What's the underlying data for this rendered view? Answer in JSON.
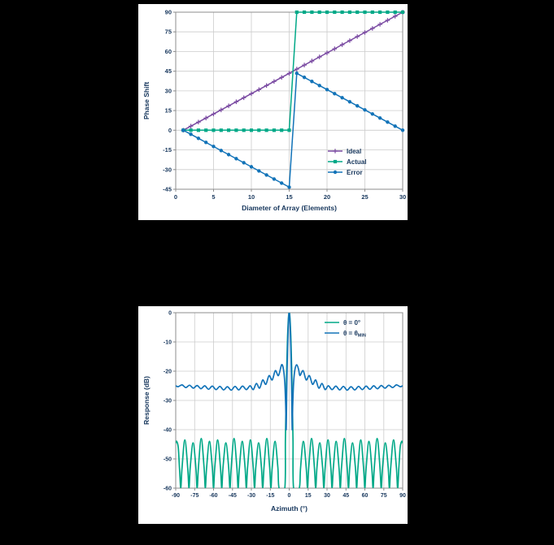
{
  "page": {
    "background": "#000000"
  },
  "colors": {
    "navy": "#16365c",
    "purple": "#7a4aa2",
    "green": "#00a887",
    "blue": "#1273b8",
    "grid": "#cccccc",
    "frame": "#8c8c8c",
    "panel": "#ffffff"
  },
  "chart_data": [
    {
      "type": "line",
      "title": "",
      "xlabel": "Diameter of Array (Elements)",
      "ylabel": "Phase Shift",
      "xlim": [
        0,
        30
      ],
      "ylim": [
        -45,
        90
      ],
      "xticks": [
        0,
        5,
        10,
        15,
        20,
        25,
        30
      ],
      "yticks": [
        -45,
        -30,
        -15,
        0,
        15,
        30,
        45,
        60,
        75,
        90
      ],
      "grid": true,
      "legend_position": "bottom-right",
      "series": [
        {
          "id": "ideal",
          "name": "Ideal",
          "color": "#7a4aa2",
          "marker": "plus",
          "smooth": false,
          "x": [
            1,
            2,
            3,
            4,
            5,
            6,
            7,
            8,
            9,
            10,
            11,
            12,
            13,
            14,
            15,
            16,
            17,
            18,
            19,
            20,
            21,
            22,
            23,
            24,
            25,
            26,
            27,
            28,
            29,
            30
          ],
          "values": [
            0,
            3.1,
            6.2,
            9.3,
            12.4,
            15.5,
            18.6,
            21.7,
            24.8,
            27.9,
            31,
            34.1,
            37.2,
            40.3,
            43.4,
            46.6,
            49.7,
            52.8,
            55.9,
            59,
            62.1,
            65.2,
            68.3,
            71.4,
            74.5,
            77.6,
            80.7,
            83.8,
            86.9,
            90
          ]
        },
        {
          "id": "actual",
          "name": "Actual",
          "color": "#00a887",
          "marker": "square",
          "smooth": false,
          "x": [
            1,
            2,
            3,
            4,
            5,
            6,
            7,
            8,
            9,
            10,
            11,
            12,
            13,
            14,
            15,
            16,
            17,
            18,
            19,
            20,
            21,
            22,
            23,
            24,
            25,
            26,
            27,
            28,
            29,
            30
          ],
          "values": [
            0,
            0,
            0,
            0,
            0,
            0,
            0,
            0,
            0,
            0,
            0,
            0,
            0,
            0,
            0,
            90,
            90,
            90,
            90,
            90,
            90,
            90,
            90,
            90,
            90,
            90,
            90,
            90,
            90,
            90
          ]
        },
        {
          "id": "error",
          "name": "Error",
          "color": "#1273b8",
          "marker": "circle",
          "smooth": false,
          "x": [
            1,
            2,
            3,
            4,
            5,
            6,
            7,
            8,
            9,
            10,
            11,
            12,
            13,
            14,
            15,
            16,
            17,
            18,
            19,
            20,
            21,
            22,
            23,
            24,
            25,
            26,
            27,
            28,
            29,
            30
          ],
          "values": [
            0,
            -3.1,
            -6.2,
            -9.3,
            -12.4,
            -15.5,
            -18.6,
            -21.7,
            -24.8,
            -27.9,
            -31,
            -34.1,
            -37.2,
            -40.3,
            -43.4,
            43.4,
            40.3,
            37.2,
            34.1,
            31,
            27.9,
            24.8,
            21.7,
            18.6,
            15.5,
            12.4,
            9.3,
            6.2,
            3.1,
            0
          ]
        }
      ]
    },
    {
      "type": "line",
      "title": "",
      "xlabel": "Azimuth (°)",
      "ylabel": "Response (dB)",
      "xlim": [
        -90,
        90
      ],
      "ylim": [
        -60,
        0
      ],
      "xticks": [
        -90,
        -75,
        -60,
        -45,
        -30,
        -15,
        0,
        15,
        30,
        45,
        60,
        75,
        90
      ],
      "yticks": [
        -60,
        -50,
        -40,
        -30,
        -20,
        -10,
        0
      ],
      "grid": true,
      "clip": true,
      "legend_position": "top-right",
      "series": [
        {
          "id": "theta-zero",
          "name": "θ = 0°",
          "label_main": "θ = 0°",
          "label_sub": "",
          "color": "#00a887",
          "smooth": true,
          "width": 1.7,
          "points": [
            [
              -90,
              -44.5
            ],
            [
              -89.25,
              -44
            ],
            [
              -88,
              -46
            ],
            [
              -87,
              -53
            ],
            [
              -86,
              -60
            ],
            [
              -85,
              -53
            ],
            [
              -82.75,
              -43.5
            ],
            [
              -80.5,
              -53
            ],
            [
              -79.5,
              -60
            ],
            [
              -78.5,
              -53
            ],
            [
              -76.25,
              -44.5
            ],
            [
              -74,
              -53
            ],
            [
              -73,
              -60
            ],
            [
              -72,
              -53
            ],
            [
              -69.75,
              -43
            ],
            [
              -67.5,
              -53
            ],
            [
              -66.5,
              -60
            ],
            [
              -65.5,
              -53
            ],
            [
              -63.25,
              -44
            ],
            [
              -61,
              -53
            ],
            [
              -60,
              -60
            ],
            [
              -59,
              -53
            ],
            [
              -56.75,
              -43.5
            ],
            [
              -54.5,
              -53
            ],
            [
              -53.5,
              -60
            ],
            [
              -52.5,
              -53
            ],
            [
              -50.25,
              -44.5
            ],
            [
              -48,
              -53
            ],
            [
              -47,
              -60
            ],
            [
              -46,
              -53
            ],
            [
              -43.75,
              -43
            ],
            [
              -41.5,
              -53
            ],
            [
              -40.5,
              -60
            ],
            [
              -39.5,
              -53
            ],
            [
              -37.25,
              -44
            ],
            [
              -35,
              -53
            ],
            [
              -34,
              -60
            ],
            [
              -33,
              -53
            ],
            [
              -30.75,
              -43.5
            ],
            [
              -28.5,
              -53
            ],
            [
              -27.5,
              -60
            ],
            [
              -26.5,
              -53
            ],
            [
              -24.25,
              -44.5
            ],
            [
              -22,
              -53
            ],
            [
              -21,
              -60
            ],
            [
              -20,
              -53
            ],
            [
              -17.75,
              -43
            ],
            [
              -15.5,
              -53
            ],
            [
              -14.5,
              -60
            ],
            [
              -13.5,
              -53
            ],
            [
              -11.25,
              -44
            ],
            [
              -9,
              -53
            ],
            [
              -8,
              -60
            ],
            [
              -3.5,
              -60
            ],
            [
              -3,
              -44
            ],
            [
              -2.5,
              -30.6
            ],
            [
              -2,
              -19.6
            ],
            [
              -1.5,
              -11
            ],
            [
              -1,
              -4.9
            ],
            [
              -0.5,
              -1.2
            ],
            [
              0,
              0
            ],
            [
              0.5,
              -1.2
            ],
            [
              1,
              -4.9
            ],
            [
              1.5,
              -11
            ],
            [
              2,
              -19.6
            ],
            [
              2.5,
              -30.6
            ],
            [
              3,
              -44
            ],
            [
              3.5,
              -60
            ],
            [
              8,
              -60
            ],
            [
              9,
              -53
            ],
            [
              11.25,
              -44
            ],
            [
              13.5,
              -53
            ],
            [
              14.5,
              -60
            ],
            [
              15.5,
              -53
            ],
            [
              17.75,
              -43
            ],
            [
              20,
              -53
            ],
            [
              21,
              -60
            ],
            [
              22,
              -53
            ],
            [
              24.25,
              -44.5
            ],
            [
              26.5,
              -53
            ],
            [
              27.5,
              -60
            ],
            [
              28.5,
              -53
            ],
            [
              30.75,
              -43.5
            ],
            [
              33,
              -53
            ],
            [
              34,
              -60
            ],
            [
              35,
              -53
            ],
            [
              37.25,
              -44
            ],
            [
              39.5,
              -53
            ],
            [
              40.5,
              -60
            ],
            [
              41.5,
              -53
            ],
            [
              43.75,
              -43
            ],
            [
              46,
              -53
            ],
            [
              47,
              -60
            ],
            [
              48,
              -53
            ],
            [
              50.25,
              -44.5
            ],
            [
              52.5,
              -53
            ],
            [
              53.5,
              -60
            ],
            [
              54.5,
              -53
            ],
            [
              56.75,
              -43.5
            ],
            [
              59,
              -53
            ],
            [
              60,
              -60
            ],
            [
              61,
              -53
            ],
            [
              63.25,
              -44
            ],
            [
              65.5,
              -53
            ],
            [
              66.5,
              -60
            ],
            [
              67.5,
              -53
            ],
            [
              69.75,
              -43
            ],
            [
              72,
              -53
            ],
            [
              73,
              -60
            ],
            [
              74,
              -53
            ],
            [
              76.25,
              -44.5
            ],
            [
              78.5,
              -53
            ],
            [
              79.5,
              -60
            ],
            [
              80.5,
              -53
            ],
            [
              82.75,
              -43.5
            ],
            [
              85,
              -53
            ],
            [
              86,
              -60
            ],
            [
              87,
              -53
            ],
            [
              88,
              -46
            ],
            [
              89.25,
              -44
            ],
            [
              90,
              -44.5
            ]
          ]
        },
        {
          "id": "theta-min",
          "name": "θ = θMIN",
          "label_main": "θ = θ",
          "label_sub": "MIN",
          "color": "#1273b8",
          "smooth": true,
          "width": 1.7,
          "points": [
            [
              -90,
              -25
            ],
            [
              -88,
              -25.3
            ],
            [
              -85,
              -24.7
            ],
            [
              -82,
              -25.6
            ],
            [
              -79,
              -24.8
            ],
            [
              -76,
              -25.8
            ],
            [
              -73,
              -24.9
            ],
            [
              -70,
              -26
            ],
            [
              -67,
              -25
            ],
            [
              -64,
              -26.2
            ],
            [
              -61,
              -25.1
            ],
            [
              -58,
              -26.3
            ],
            [
              -55,
              -25.2
            ],
            [
              -52,
              -26.4
            ],
            [
              -49,
              -25.3
            ],
            [
              -46,
              -26.5
            ],
            [
              -43,
              -25.2
            ],
            [
              -40,
              -26.4
            ],
            [
              -37,
              -25.1
            ],
            [
              -34,
              -26.3
            ],
            [
              -31,
              -25
            ],
            [
              -28.5,
              -26.3
            ],
            [
              -26,
              -24.2
            ],
            [
              -23.5,
              -25.8
            ],
            [
              -21,
              -23
            ],
            [
              -18.5,
              -24.5
            ],
            [
              -16,
              -21.5
            ],
            [
              -13.5,
              -23
            ],
            [
              -11,
              -19.8
            ],
            [
              -8.5,
              -21.5
            ],
            [
              -6,
              -17.8
            ],
            [
              -4.5,
              -19.5
            ],
            [
              -3.5,
              -24
            ],
            [
              -2.8,
              -32
            ],
            [
              -2.4,
              -40
            ],
            [
              -2,
              -28
            ],
            [
              -1.5,
              -16
            ],
            [
              -1,
              -7.5
            ],
            [
              -0.5,
              -2
            ],
            [
              0,
              0
            ],
            [
              0.5,
              -2
            ],
            [
              1,
              -7.5
            ],
            [
              1.5,
              -16
            ],
            [
              2,
              -28
            ],
            [
              2.4,
              -40
            ],
            [
              2.8,
              -32
            ],
            [
              3.5,
              -24
            ],
            [
              4.5,
              -19.5
            ],
            [
              6,
              -17.8
            ],
            [
              7.5,
              -19.5
            ],
            [
              8.5,
              -21.5
            ],
            [
              11,
              -19.8
            ],
            [
              13.5,
              -23
            ],
            [
              16,
              -21.5
            ],
            [
              18.5,
              -24.5
            ],
            [
              21,
              -23
            ],
            [
              23.5,
              -25.8
            ],
            [
              26,
              -24.2
            ],
            [
              28.5,
              -26.3
            ],
            [
              31,
              -25
            ],
            [
              34,
              -26.3
            ],
            [
              37,
              -25.1
            ],
            [
              40,
              -26.4
            ],
            [
              43,
              -25.2
            ],
            [
              46,
              -26.5
            ],
            [
              49,
              -25.3
            ],
            [
              52,
              -26.4
            ],
            [
              55,
              -25.2
            ],
            [
              58,
              -26.3
            ],
            [
              61,
              -25.1
            ],
            [
              64,
              -26.2
            ],
            [
              67,
              -25
            ],
            [
              70,
              -26
            ],
            [
              73,
              -24.9
            ],
            [
              76,
              -25.8
            ],
            [
              79,
              -24.8
            ],
            [
              82,
              -25.6
            ],
            [
              85,
              -24.7
            ],
            [
              88,
              -25.3
            ],
            [
              90,
              -25
            ]
          ]
        }
      ]
    }
  ]
}
